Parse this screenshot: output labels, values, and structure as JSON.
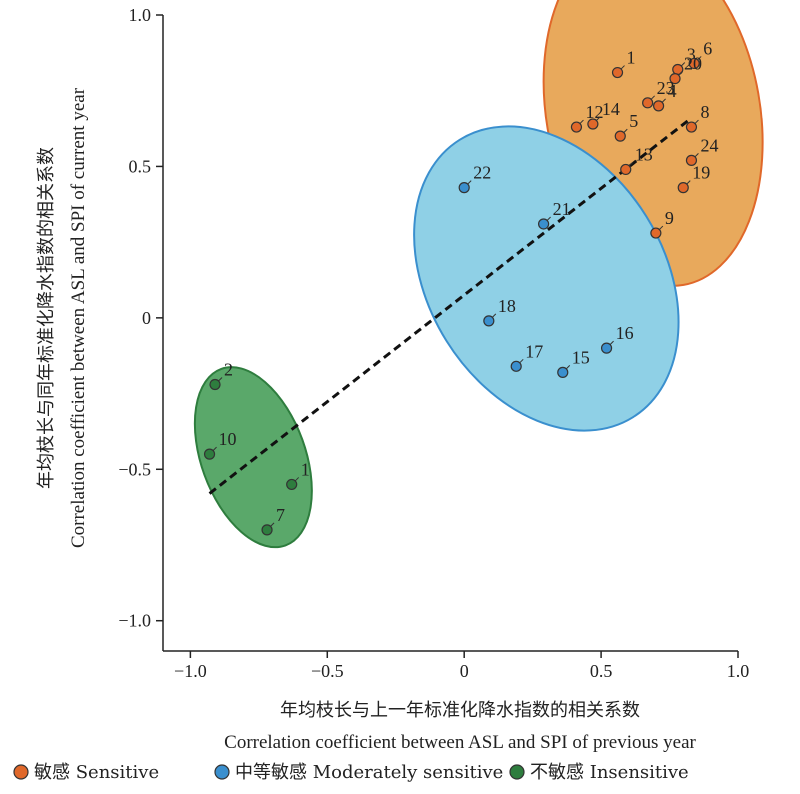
{
  "chart_data": {
    "type": "scatter",
    "xlabel_cn": "年均枝长与上一年标准化降水指数的相关系数",
    "xlabel_en": "Correlation coefficient between ASL and SPI of previous year",
    "ylabel_cn": "年均枝长与同年标准化降水指数的相关系数",
    "ylabel_en": "Correlation coefficient between ASL and SPI of current year",
    "xlim": [
      -1.1,
      1.0
    ],
    "ylim": [
      -1.1,
      1.0
    ],
    "xticks": [
      -1.0,
      -0.5,
      0,
      0.5,
      1.0
    ],
    "xtick_labels": [
      "−1.0",
      "−0.5",
      "0",
      "0.5",
      "1.0"
    ],
    "yticks": [
      -1.0,
      -0.5,
      0,
      0.5,
      1.0
    ],
    "ytick_labels": [
      "−1.0",
      "−0.5",
      "0",
      "0.5",
      "1.0"
    ],
    "colors": {
      "sensitive_fill": "#e8a95c",
      "sensitive_point": "#e0682a",
      "moderate_fill": "#8fd0e6",
      "moderate_point": "#3a8fce",
      "insensitive_fill": "#5aa86a",
      "insensitive_point": "#2e7d3e"
    },
    "groups": [
      {
        "key": "sensitive",
        "legend": "敏感 Sensitive",
        "ellipse": {
          "cx": 0.69,
          "cy": 0.68,
          "rx": 0.39,
          "ry": 0.58,
          "angle": -10
        },
        "points": [
          {
            "label": "1",
            "x": 0.56,
            "y": 0.81
          },
          {
            "label": "3",
            "x": 0.78,
            "y": 0.82
          },
          {
            "label": "6",
            "x": 0.84,
            "y": 0.84
          },
          {
            "label": "20",
            "x": 0.77,
            "y": 0.79
          },
          {
            "label": "23",
            "x": 0.67,
            "y": 0.71
          },
          {
            "label": "4",
            "x": 0.71,
            "y": 0.7
          },
          {
            "label": "12",
            "x": 0.41,
            "y": 0.63
          },
          {
            "label": "14",
            "x": 0.47,
            "y": 0.64
          },
          {
            "label": "5",
            "x": 0.57,
            "y": 0.6
          },
          {
            "label": "8",
            "x": 0.83,
            "y": 0.63
          },
          {
            "label": "13",
            "x": 0.59,
            "y": 0.49
          },
          {
            "label": "24",
            "x": 0.83,
            "y": 0.52
          },
          {
            "label": "19",
            "x": 0.8,
            "y": 0.43
          },
          {
            "label": "9",
            "x": 0.7,
            "y": 0.28
          }
        ]
      },
      {
        "key": "moderate",
        "legend": "中等敏感 Moderately sensitive",
        "ellipse": {
          "cx": 0.3,
          "cy": 0.13,
          "rx": 0.43,
          "ry": 0.54,
          "angle": -32
        },
        "points": [
          {
            "label": "22",
            "x": 0.0,
            "y": 0.43
          },
          {
            "label": "21",
            "x": 0.29,
            "y": 0.31
          },
          {
            "label": "18",
            "x": 0.09,
            "y": -0.01
          },
          {
            "label": "16",
            "x": 0.52,
            "y": -0.1
          },
          {
            "label": "17",
            "x": 0.19,
            "y": -0.16
          },
          {
            "label": "15",
            "x": 0.36,
            "y": -0.18
          }
        ]
      },
      {
        "key": "insensitive",
        "legend": "不敏感 Insensitive",
        "ellipse": {
          "cx": -0.77,
          "cy": -0.46,
          "rx": 0.19,
          "ry": 0.31,
          "angle": -20
        },
        "points": [
          {
            "label": "2",
            "x": -0.91,
            "y": -0.22
          },
          {
            "label": "10",
            "x": -0.93,
            "y": -0.45
          },
          {
            "label": "1",
            "x": -0.63,
            "y": -0.55
          },
          {
            "label": "7",
            "x": -0.72,
            "y": -0.7
          }
        ]
      }
    ],
    "trend_line": {
      "x": [
        -0.93,
        0.83
      ],
      "y": [
        -0.58,
        0.66
      ],
      "style": "dashed"
    }
  }
}
